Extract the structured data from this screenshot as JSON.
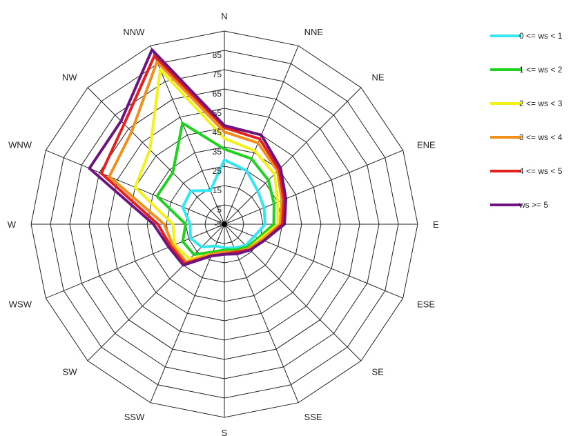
{
  "chart_data": {
    "type": "radar",
    "directions": [
      "N",
      "NNE",
      "NE",
      "ENE",
      "E",
      "ESE",
      "SE",
      "SSE",
      "S",
      "SSW",
      "SW",
      "WSW",
      "W",
      "WNW",
      "NW",
      "NNW"
    ],
    "radial_ticks": [
      "-5",
      "5",
      "15",
      "25",
      "35",
      "45",
      "55",
      "65",
      "75",
      "85"
    ],
    "rlim": [
      -5,
      85
    ],
    "grid": true,
    "legend_position": "right",
    "series": [
      {
        "name": "0 <= ws < 1",
        "color": "#33e6f2",
        "values": [
          25,
          22,
          17,
          15,
          14,
          10,
          9,
          7,
          6,
          6,
          10,
          12,
          11,
          16,
          17,
          12
        ]
      },
      {
        "name": "1 <= ws < 2",
        "color": "#1fd21f",
        "values": [
          30,
          28,
          24,
          20,
          18,
          12,
          10,
          8,
          7,
          9,
          15,
          16,
          13,
          29,
          29,
          46
        ]
      },
      {
        "name": "2 <= ws < 3",
        "color": "#f2f21a",
        "values": [
          35,
          32,
          28,
          22,
          20,
          13,
          11,
          9,
          8,
          10,
          18,
          20,
          19,
          40,
          44,
          73
        ]
      },
      {
        "name": "3 <= ws < 4",
        "color": "#f0901a",
        "values": [
          38,
          36,
          30,
          24,
          21,
          14,
          11,
          9,
          8,
          10,
          20,
          21,
          23,
          53,
          56,
          77
        ]
      },
      {
        "name": "4 <= ws < 5",
        "color": "#e61e1e",
        "values": [
          40,
          38,
          31,
          25,
          22,
          15,
          12,
          9,
          9,
          11,
          21,
          22,
          26,
          57,
          61,
          80
        ]
      },
      {
        "name": "ws >= 5",
        "color": "#6e1480",
        "values": [
          41,
          40,
          32,
          26,
          23,
          15,
          12,
          10,
          9,
          11,
          22,
          23,
          28,
          63,
          63,
          83
        ]
      }
    ]
  }
}
